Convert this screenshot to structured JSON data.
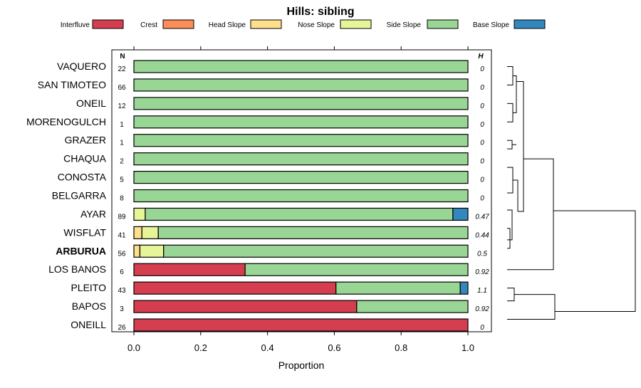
{
  "chart_data": {
    "type": "bar",
    "title": "Hills: sibling",
    "xlabel": "Proportion",
    "ylabel": "",
    "xlim": [
      0,
      1
    ],
    "x_ticks": [
      "0.0",
      "0.2",
      "0.4",
      "0.6",
      "0.8",
      "1.0"
    ],
    "n_header": "N",
    "h_header": "H",
    "categories": [
      "VAQUERO",
      "SAN TIMOTEO",
      "ONEIL",
      "MORENOGULCH",
      "GRAZER",
      "CHAQUA",
      "CONOSTA",
      "BELGARRA",
      "AYAR",
      "WISFLAT",
      "ARBURUA",
      "LOS BANOS",
      "PLEITO",
      "BAPOS",
      "ONEILL"
    ],
    "bold_category": "ARBURUA",
    "n": [
      "22",
      "66",
      "12",
      "1",
      "1",
      "2",
      "5",
      "8",
      "89",
      "41",
      "56",
      "6",
      "43",
      "3",
      "26"
    ],
    "h": [
      "0",
      "0",
      "0",
      "0",
      "0",
      "0",
      "0",
      "0",
      "0.47",
      "0.44",
      "0.5",
      "0.92",
      "1.1",
      "0.92",
      "0"
    ],
    "series": [
      {
        "name": "Interfluve",
        "color": "#d53e4f",
        "values": [
          0,
          0,
          0,
          0,
          0,
          0,
          0,
          0,
          0,
          0,
          0,
          0.333,
          0.605,
          0.667,
          1.0
        ]
      },
      {
        "name": "Crest",
        "color": "#fc8d59",
        "values": [
          0,
          0,
          0,
          0,
          0,
          0,
          0,
          0,
          0,
          0,
          0,
          0,
          0,
          0,
          0
        ]
      },
      {
        "name": "Head Slope",
        "color": "#fee08b",
        "values": [
          0,
          0,
          0,
          0,
          0,
          0,
          0,
          0,
          0,
          0.024,
          0.018,
          0,
          0,
          0,
          0
        ]
      },
      {
        "name": "Nose Slope",
        "color": "#e6f598",
        "values": [
          0,
          0,
          0,
          0,
          0,
          0,
          0,
          0,
          0.034,
          0.049,
          0.071,
          0,
          0,
          0,
          0
        ]
      },
      {
        "name": "Side Slope",
        "color": "#99d594",
        "values": [
          1.0,
          1.0,
          1.0,
          1.0,
          1.0,
          1.0,
          1.0,
          1.0,
          0.921,
          0.927,
          0.911,
          0.667,
          0.372,
          0.333,
          0
        ]
      },
      {
        "name": "Base Slope",
        "color": "#3288bd",
        "values": [
          0,
          0,
          0,
          0,
          0,
          0,
          0,
          0,
          0.045,
          0,
          0,
          0,
          0.023,
          0,
          0
        ]
      }
    ],
    "legend_position": "top",
    "dendrogram": true
  }
}
